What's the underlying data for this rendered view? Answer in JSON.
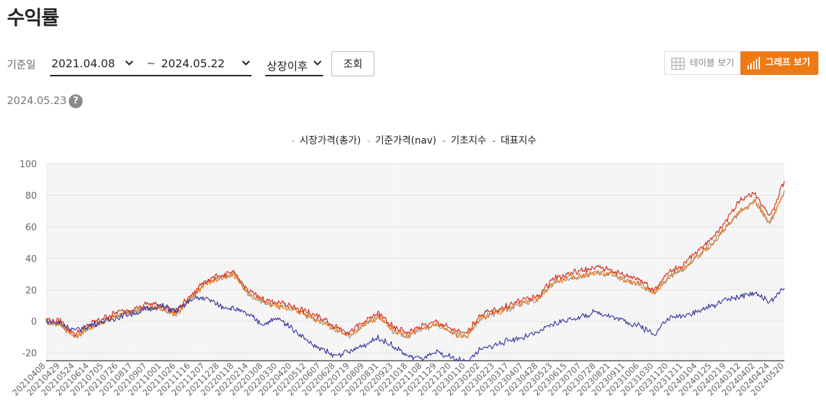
{
  "title": "수익률",
  "filter": {
    "base_date_label": "기준일",
    "start_date": "2021.04.08",
    "tilde": "~",
    "end_date": "2024.05.22",
    "period": "상장이후",
    "search_label": "조회"
  },
  "view_toggle": {
    "table_label": "테이블 보기",
    "graph_label": "그래프 보기",
    "active": "graph"
  },
  "as_of_date": "2024.05.23",
  "help_glyph": "?",
  "colors": {
    "accent": "#ee7a16",
    "market": "#999999",
    "nav": "#ee7a16",
    "base_index": "#d7301f",
    "benchmark": "#3b3ba0"
  },
  "chart_data": {
    "type": "line",
    "ylim": [
      -25,
      100
    ],
    "yticks": [
      100,
      80,
      60,
      40,
      20,
      0,
      -20
    ],
    "x_labels": [
      "20210408",
      "20210429",
      "20210524",
      "20210614",
      "20210705",
      "20210726",
      "20210817",
      "20210907",
      "20211001",
      "20211026",
      "20211116",
      "20211207",
      "20211228",
      "20220118",
      "20220214",
      "20220308",
      "20220330",
      "20220420",
      "20220512",
      "20220607",
      "20220628",
      "20220719",
      "20220809",
      "20220831",
      "20220923",
      "20221018",
      "20221108",
      "20221129",
      "20221220",
      "20230110",
      "20230202",
      "20230223",
      "20230317",
      "20230407",
      "20230428",
      "20230523",
      "20230615",
      "20230707",
      "20230728",
      "20230821",
      "20230911",
      "20231006",
      "20231030",
      "20231120",
      "20231211",
      "20240104",
      "20240125",
      "20240219",
      "20240312",
      "20240402",
      "20240424",
      "20240520"
    ],
    "series": [
      {
        "name": "시장가격(총가)",
        "color": "#999999",
        "values": [
          0,
          -2,
          -10,
          -4,
          0,
          4,
          6,
          9,
          8,
          5,
          14,
          24,
          27,
          30,
          17,
          12,
          10,
          8,
          4,
          0,
          -5,
          -9,
          -2,
          3,
          -6,
          -9,
          -5,
          -2,
          -7,
          -10,
          2,
          5,
          8,
          12,
          14,
          24,
          27,
          29,
          31,
          30,
          26,
          24,
          18,
          28,
          33,
          41,
          49,
          60,
          70,
          76,
          62,
          83
        ]
      },
      {
        "name": "기준가격(nav)",
        "color": "#ee7a16",
        "values": [
          0,
          -2,
          -10,
          -4,
          0,
          4,
          6,
          9,
          8,
          5,
          14,
          24,
          27,
          30,
          17,
          12,
          10,
          8,
          4,
          0,
          -5,
          -9,
          -2,
          3,
          -6,
          -9,
          -5,
          -2,
          -7,
          -10,
          2,
          5,
          8,
          12,
          14,
          24,
          27,
          29,
          31,
          30,
          26,
          24,
          18,
          28,
          33,
          41,
          49,
          60,
          70,
          76,
          62,
          83
        ]
      },
      {
        "name": "기초지수",
        "color": "#d7301f",
        "values": [
          1,
          0,
          -8,
          -2,
          2,
          6,
          8,
          11,
          10,
          7,
          16,
          26,
          29,
          31,
          19,
          14,
          12,
          10,
          6,
          2,
          -3,
          -7,
          0,
          5,
          -4,
          -7,
          -3,
          0,
          -5,
          -8,
          4,
          7,
          10,
          14,
          16,
          27,
          30,
          32,
          34,
          33,
          29,
          27,
          20,
          31,
          36,
          44,
          53,
          64,
          78,
          81,
          67,
          89
        ]
      },
      {
        "name": "대표지수",
        "color": "#3b3ba0",
        "values": [
          0,
          -1,
          -6,
          -3,
          0,
          3,
          5,
          8,
          10,
          6,
          14,
          15,
          10,
          8,
          4,
          -2,
          2,
          -4,
          -12,
          -18,
          -22,
          -19,
          -15,
          -10,
          -16,
          -22,
          -24,
          -20,
          -23,
          -26,
          -18,
          -15,
          -12,
          -10,
          -7,
          -2,
          1,
          3,
          6,
          3,
          0,
          -3,
          -8,
          2,
          4,
          6,
          10,
          14,
          16,
          18,
          12,
          21
        ]
      }
    ]
  }
}
